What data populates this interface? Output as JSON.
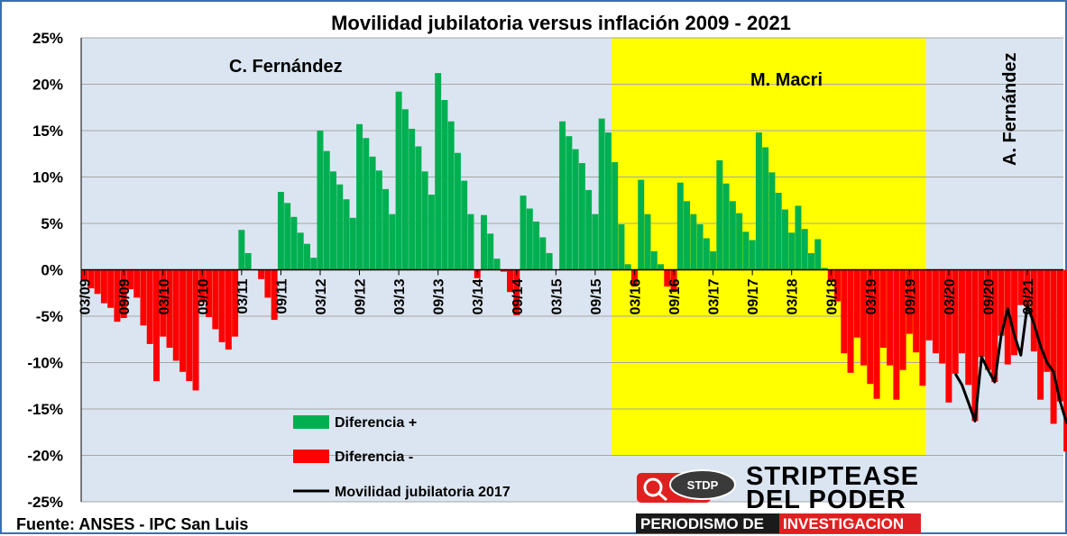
{
  "chart_data": {
    "type": "bar",
    "title": "Movilidad jubilatoria versus inflación 2009 - 2021",
    "source": "Fuente: ANSES  - IPC San Luis",
    "ylim": [
      -25,
      25
    ],
    "yticks": [
      25,
      20,
      15,
      10,
      5,
      0,
      -5,
      -10,
      -15,
      -20,
      -25
    ],
    "ytick_labels": [
      "25%",
      "20%",
      "15%",
      "10%",
      "5%",
      "0%",
      "-5%",
      "-10%",
      "-15%",
      "-20%",
      "-25%"
    ],
    "x_start": "03/09",
    "x_end": "08/21",
    "x_ticks": [
      "03/09",
      "09/09",
      "03/10",
      "09/10",
      "03/11",
      "09/11",
      "03/12",
      "09/12",
      "03/13",
      "09/13",
      "03/14",
      "09/14",
      "03/15",
      "09/15",
      "03/16",
      "09/16",
      "03/17",
      "09/17",
      "03/18",
      "09/18",
      "03/19",
      "09/19",
      "03/20",
      "09/20",
      "03/21"
    ],
    "grid": "horizontal",
    "legend_position": "bottom-center",
    "legend": [
      {
        "label": "Diferencia +",
        "color": "#00b050",
        "kind": "bar"
      },
      {
        "label": "Diferencia -",
        "color": "#ff0000",
        "kind": "bar"
      },
      {
        "label": "Movilidad jubilatoria 2017",
        "color": "#000000",
        "kind": "line"
      }
    ],
    "annotations": [
      {
        "text": "C. Fernández",
        "rotated": false
      },
      {
        "text": "M. Macri",
        "rotated": false
      },
      {
        "text": "A. Fernández",
        "rotated": true
      }
    ],
    "highlight_period": {
      "label": "M. Macri",
      "color": "#ffff00",
      "from": "12/15",
      "to": "12/19"
    },
    "series": [
      {
        "name": "Diferencia",
        "positive_color": "#00b050",
        "negative_color": "#ff0000",
        "values": [
          -1.2,
          -2.0,
          -2.6,
          -3.6,
          -4.1,
          -5.6,
          -5.2,
          -2.1,
          -3.0,
          -6.0,
          -8.0,
          -12.0,
          -7.2,
          -8.4,
          -9.8,
          -11.0,
          -12.0,
          -13.0,
          -3.5,
          -5.1,
          -6.4,
          -7.8,
          -8.6,
          -7.2,
          4.3,
          1.8,
          0,
          -1.0,
          -3.0,
          -5.4,
          8.4,
          7.2,
          5.7,
          4.0,
          2.8,
          1.3,
          15.0,
          12.8,
          10.6,
          9.2,
          7.6,
          5.6,
          15.7,
          14.2,
          12.2,
          10.7,
          8.7,
          6.0,
          19.2,
          17.3,
          15.2,
          13.3,
          10.6,
          8.1,
          21.2,
          18.3,
          16.0,
          12.6,
          9.6,
          6.0,
          -0.9,
          5.9,
          3.9,
          1.2,
          -0.2,
          -2.4,
          -4.9,
          8.0,
          6.6,
          5.2,
          3.5,
          1.8,
          0,
          16.0,
          14.4,
          13.0,
          11.5,
          8.6,
          6.0,
          16.3,
          14.8,
          11.6,
          4.9,
          0.6,
          -1.8,
          9.7,
          6.0,
          2.0,
          0.6,
          -1.8,
          -2.4,
          9.4,
          7.4,
          6.0,
          4.9,
          3.4,
          2.0,
          11.8,
          9.3,
          7.4,
          6.1,
          4.1,
          3.2,
          14.8,
          13.2,
          10.5,
          8.3,
          6.5,
          4.0,
          6.9,
          4.4,
          1.8,
          3.3,
          0.2,
          -1.3,
          -3.4,
          -9.0,
          -11.1,
          -7.3,
          -10.3,
          -12.3,
          -13.9,
          -8.4,
          -10.3,
          -14.0,
          -10.8,
          -6.9,
          -8.9,
          -12.5,
          -7.6,
          -9.0,
          -10.1,
          -14.3,
          -11.2,
          -9.0,
          -12.4,
          -16.3,
          -9.4,
          -10.8,
          -12.1,
          -7.1,
          -10.2,
          -9.2,
          -3.8,
          -4.0,
          -8.8,
          -14.0,
          -11.0,
          -16.6,
          -14.2,
          -19.6,
          -16.5,
          -19.3,
          -22.0
        ],
        "line_name": "Movilidad jubilatoria 2017",
        "line_from": "04/20",
        "line_values": [
          -11.2,
          -12.4,
          -14.3,
          -16.3,
          -9.4,
          -10.8,
          -12.1,
          -7.1,
          -4.2,
          -7.0,
          -9.2,
          -3.8,
          -5.8,
          -8.2,
          -10.0,
          -11.0,
          -14.2,
          -16.5,
          -13.9,
          -16.8,
          -19.4
        ]
      }
    ]
  },
  "logo": {
    "badge": "STDP",
    "line1": "STRIPTEASE",
    "line2": "DEL PODER",
    "bar_left": "PERIODISMO DE ",
    "bar_right": "INVESTIGACION"
  }
}
